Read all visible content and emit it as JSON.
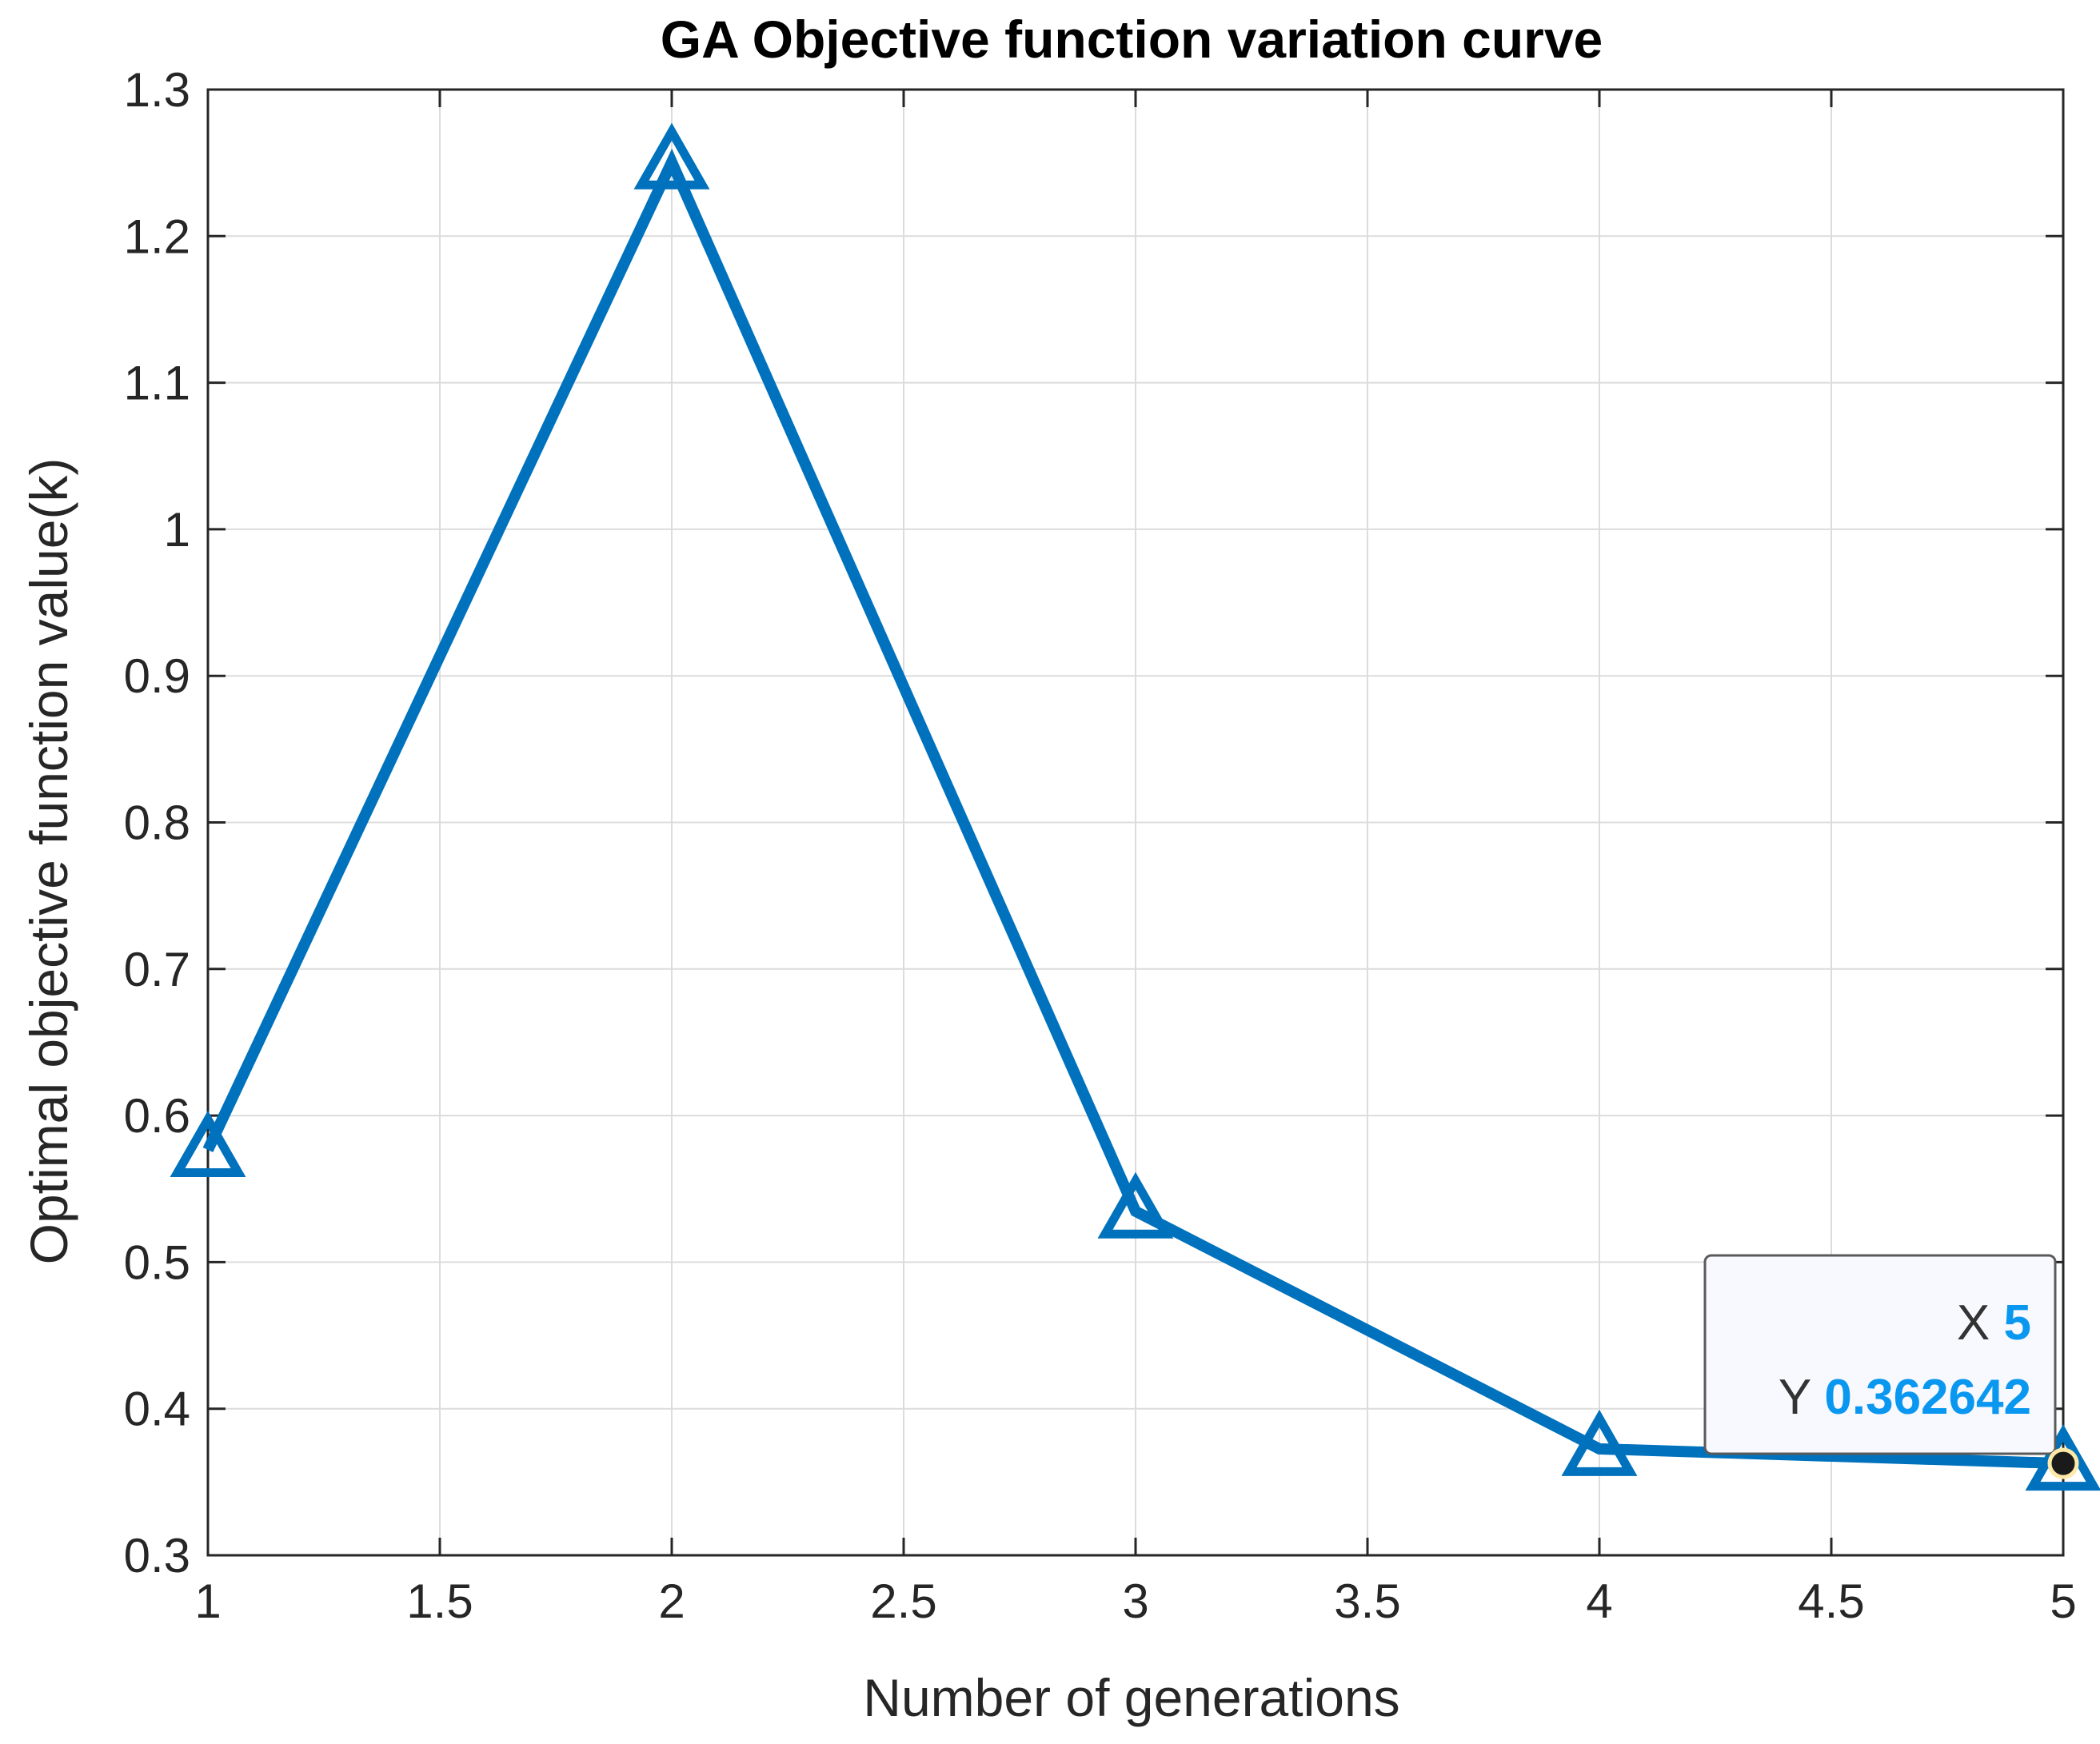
{
  "chart_data": {
    "type": "line",
    "title": "GA Objective function variation curve",
    "xlabel": "Number of generations",
    "ylabel": "Optimal objective function value(k)",
    "x": [
      1,
      2,
      3,
      4,
      5
    ],
    "y": [
      0.5766,
      1.2505,
      0.5347,
      0.3726,
      0.362642
    ],
    "xlim": [
      1,
      5
    ],
    "ylim": [
      0.3,
      1.3
    ],
    "xticks": [
      "1",
      "1.5",
      "2",
      "2.5",
      "3",
      "3.5",
      "4",
      "4.5",
      "5"
    ],
    "yticks": [
      "0.3",
      "0.4",
      "0.5",
      "0.6",
      "0.7",
      "0.8",
      "0.9",
      "1",
      "1.1",
      "1.2",
      "1.3"
    ],
    "grid": true,
    "marker": "triangle",
    "line_color": "#0072BD",
    "datatip": {
      "x_label": "X",
      "x_value": "5",
      "y_label": "Y",
      "y_value": "0.362642",
      "value_color": "#0A97F0"
    }
  }
}
